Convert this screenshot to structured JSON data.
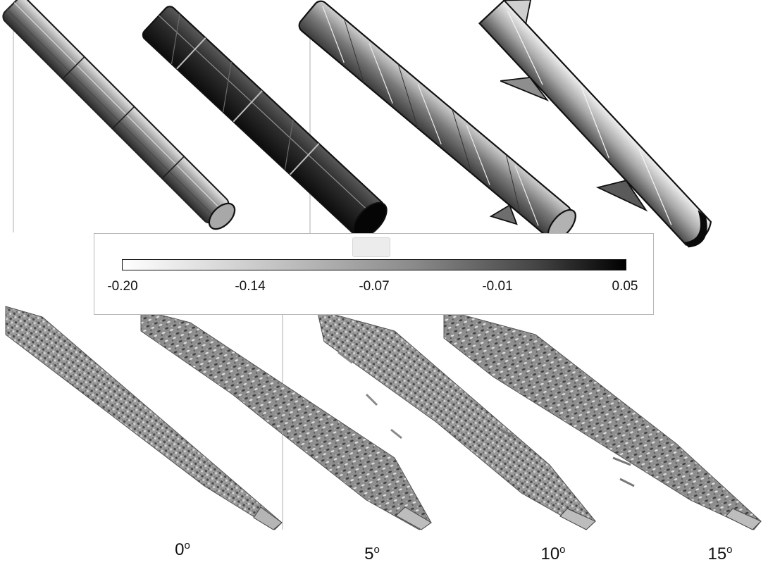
{
  "colorbar": {
    "ticks": [
      "-0.20",
      "-0.14",
      "-0.07",
      "-0.01",
      "0.05"
    ],
    "range": [
      -0.2,
      0.05
    ],
    "colormap": [
      "#ffffff",
      "#000000"
    ]
  },
  "angles": [
    {
      "value": "0",
      "unit": "o"
    },
    {
      "value": "5",
      "unit": "o"
    },
    {
      "value": "10",
      "unit": "o"
    },
    {
      "value": "15",
      "unit": "o"
    }
  ]
}
